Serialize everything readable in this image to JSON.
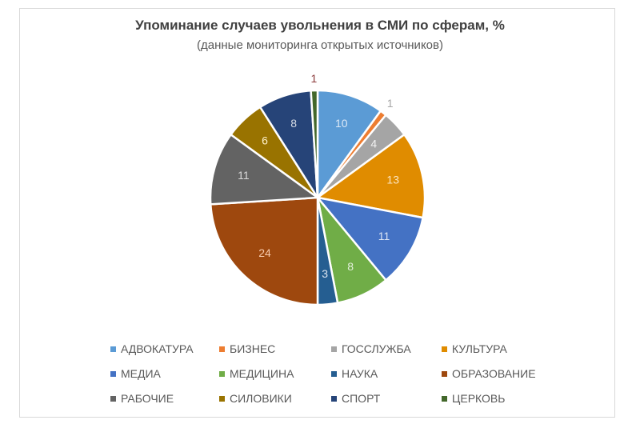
{
  "chart_data": {
    "type": "pie",
    "title": "Упоминание случаев увольнения в СМИ по сферам, %",
    "subtitle": "(данные мониторинга открытых источников)",
    "start_angle_deg": 0,
    "direction": "clockwise",
    "legend_position": "bottom",
    "categories": [
      "АДВОКАТУРА",
      "БИЗНЕС",
      "ГОССЛУЖБА",
      "КУЛЬТУРА",
      "МЕДИА",
      "МЕДИЦИНА",
      "НАУКА",
      "ОБРАЗОВАНИЕ",
      "РАБОЧИЕ",
      "СИЛОВИКИ",
      "СПОРТ",
      "ЦЕРКОВЬ"
    ],
    "values": [
      10,
      1,
      4,
      13,
      11,
      8,
      3,
      24,
      11,
      6,
      8,
      1
    ],
    "colors": [
      "#5b9bd5",
      "#ed7d31",
      "#a5a5a5",
      "#e08c00",
      "#4472c4",
      "#70ad47",
      "#255e91",
      "#9e480e",
      "#636363",
      "#997300",
      "#264478",
      "#43682b"
    ],
    "label_colors": [
      "#dbe8f6",
      "#c0504d",
      "#f2f2f2",
      "#fbe5c0",
      "#dae3f3",
      "#e2efda",
      "#dbe4ef",
      "#f8cbad",
      "#d9d9d9",
      "#fff2cc",
      "#d6dce5",
      "#8b3a3a"
    ],
    "label_outside": [
      false,
      true,
      false,
      false,
      false,
      false,
      false,
      false,
      false,
      false,
      false,
      true
    ]
  },
  "legend": {
    "items": [
      {
        "label": "АДВОКАТУРА",
        "color": "#5b9bd5"
      },
      {
        "label": "БИЗНЕС",
        "color": "#ed7d31"
      },
      {
        "label": "ГОССЛУЖБА",
        "color": "#a5a5a5"
      },
      {
        "label": "КУЛЬТУРА",
        "color": "#e08c00"
      },
      {
        "label": "МЕДИА",
        "color": "#4472c4"
      },
      {
        "label": "МЕДИЦИНА",
        "color": "#70ad47"
      },
      {
        "label": "НАУКА",
        "color": "#255e91"
      },
      {
        "label": "ОБРАЗОВАНИЕ",
        "color": "#9e480e"
      },
      {
        "label": "РАБОЧИЕ",
        "color": "#636363"
      },
      {
        "label": "СИЛОВИКИ",
        "color": "#997300"
      },
      {
        "label": "СПОРТ",
        "color": "#264478"
      },
      {
        "label": "ЦЕРКОВЬ",
        "color": "#43682b"
      }
    ]
  }
}
